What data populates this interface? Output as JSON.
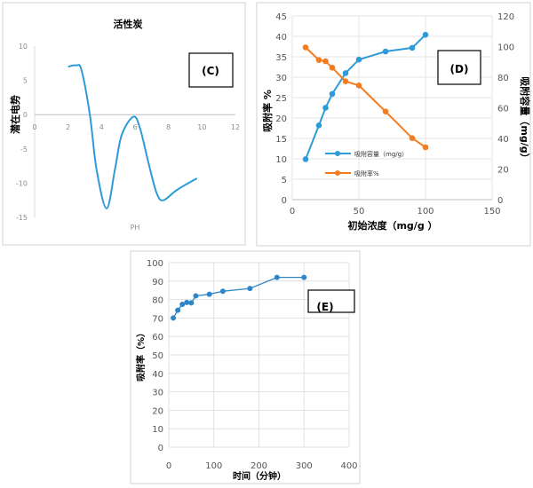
{
  "chart_data": [
    {
      "type": "line",
      "panel_label": "(C)",
      "title": "活性炭",
      "xlabel": "PH",
      "ylabel": "潜在电势",
      "xlim": [
        0,
        12
      ],
      "ylim": [
        -15,
        10
      ],
      "xticks": [
        "0",
        "2",
        "4",
        "6",
        "8",
        "10",
        "12"
      ],
      "yticks": [
        "-15",
        "-10",
        "-5",
        "0",
        "5",
        "10"
      ],
      "grid": false,
      "smooth": true,
      "color": "#2E9BD8",
      "x": [
        2,
        2.5,
        2.8,
        3.3,
        3.7,
        4.3,
        4.8,
        5.2,
        5.9,
        6.3,
        6.8,
        7.3,
        7.7,
        8.5,
        9.7
      ],
      "y": [
        7,
        7.2,
        6.5,
        0,
        -8,
        -13.7,
        -8,
        -3,
        -0.3,
        -2,
        -7,
        -11.5,
        -12.5,
        -11,
        -9.3
      ]
    },
    {
      "type": "line",
      "panel_label": "(D)",
      "xlabel": "初始浓度（mg/g ）",
      "ylabel": "吸附率 %",
      "y2label": "吸附容量（mg/g）",
      "xlim": [
        0,
        150
      ],
      "ylim": [
        0,
        45
      ],
      "y2lim": [
        0,
        120
      ],
      "xticks": [
        "0",
        "50",
        "100",
        "150"
      ],
      "yticks": [
        "0",
        "5",
        "10",
        "15",
        "20",
        "25",
        "30",
        "35",
        "40",
        "45"
      ],
      "y2ticks": [
        "0",
        "20",
        "40",
        "60",
        "80",
        "100",
        "120"
      ],
      "grid": true,
      "legend": "center-left",
      "x": [
        10,
        20,
        25,
        30,
        40,
        50,
        70,
        90,
        100
      ],
      "series": [
        {
          "name": "吸附容量（mg/g）",
          "axis": "left",
          "color": "#2E9BD8",
          "values": [
            9.9,
            18.2,
            22.5,
            25.9,
            31.0,
            34.3,
            36.3,
            37.2,
            40.4
          ]
        },
        {
          "name": "吸附率%",
          "axis": "right",
          "color": "#F47C20",
          "values": [
            99.5,
            91.2,
            90.4,
            86.2,
            77.3,
            74.6,
            57.6,
            40.2,
            34.2
          ]
        }
      ]
    },
    {
      "type": "line",
      "panel_label": "(E)",
      "xlabel": "时间（分钟）",
      "ylabel": "吸附率（%）",
      "xlim": [
        0,
        400
      ],
      "ylim": [
        0,
        100
      ],
      "xticks": [
        "0",
        "100",
        "200",
        "300",
        "400"
      ],
      "yticks": [
        "0",
        "10",
        "20",
        "30",
        "40",
        "50",
        "60",
        "70",
        "80",
        "90",
        "100"
      ],
      "grid": true,
      "color": "#2E86C8",
      "x": [
        10,
        20,
        30,
        40,
        50,
        60,
        90,
        120,
        180,
        240,
        300
      ],
      "y": [
        70,
        74.2,
        77.4,
        78.4,
        78.2,
        82,
        82.9,
        84.5,
        86,
        92,
        92
      ]
    }
  ]
}
